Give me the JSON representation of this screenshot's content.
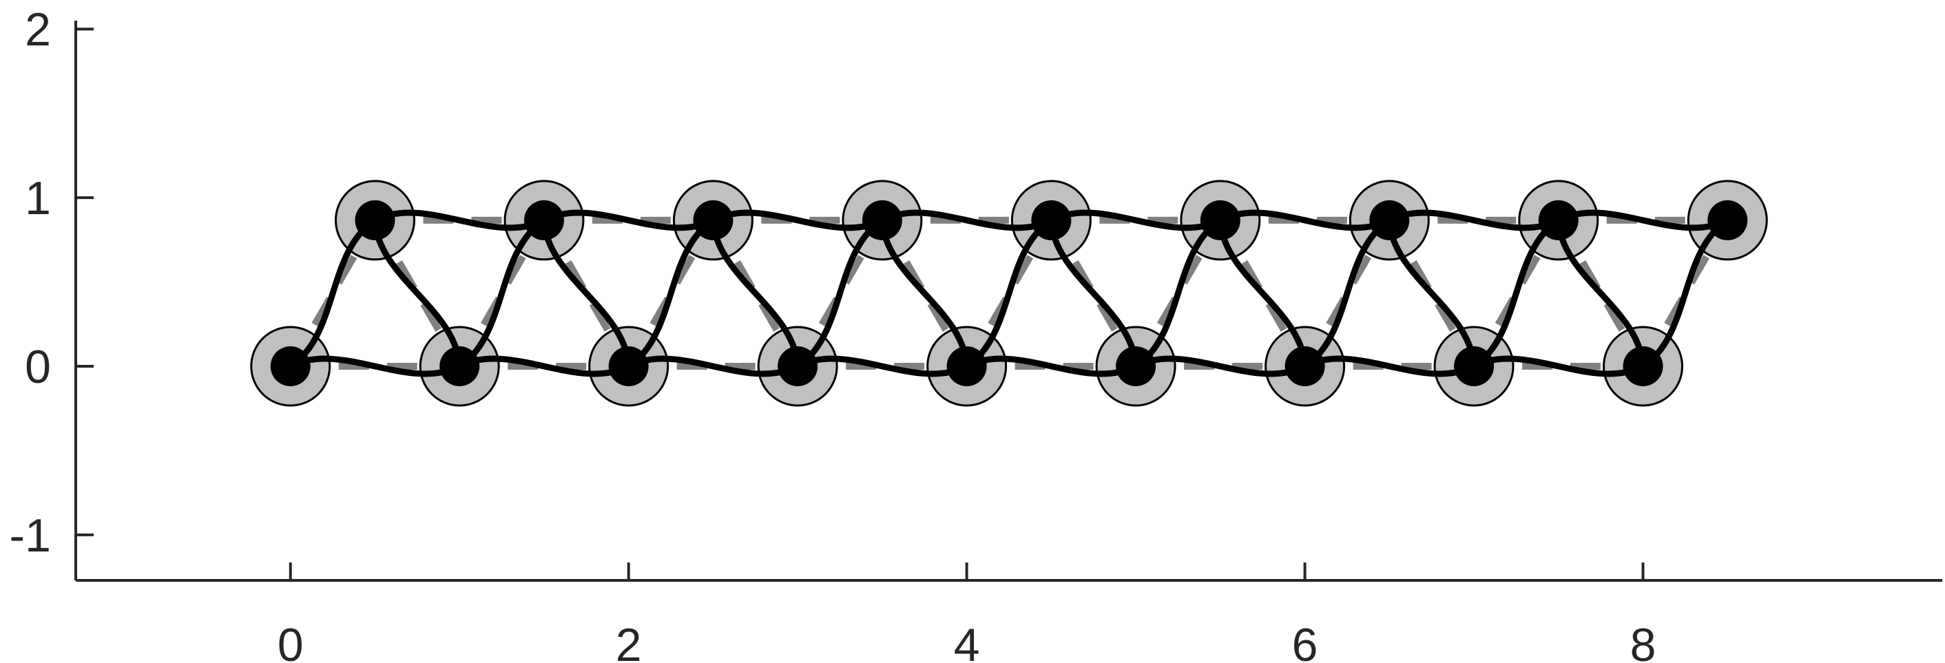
{
  "chart_data": {
    "type": "scatter",
    "title": "",
    "xlabel": "",
    "ylabel": "",
    "xlim": [
      -1.27,
      9.77
    ],
    "ylim": [
      -1.27,
      2.05
    ],
    "grid": false,
    "xticks": [
      0,
      2,
      4,
      6,
      8
    ],
    "xtick_labels": [
      "0",
      "2",
      "4",
      "6",
      "8"
    ],
    "yticks": [
      -1,
      0,
      1,
      2
    ],
    "ytick_labels": [
      "-1",
      "0",
      "1",
      "2"
    ],
    "nodes": [
      {
        "x": 0,
        "y": 0
      },
      {
        "x": 0.5,
        "y": 0.866
      },
      {
        "x": 1,
        "y": 0
      },
      {
        "x": 1.5,
        "y": 0.866
      },
      {
        "x": 2,
        "y": 0
      },
      {
        "x": 2.5,
        "y": 0.866
      },
      {
        "x": 3,
        "y": 0
      },
      {
        "x": 3.5,
        "y": 0.866
      },
      {
        "x": 4,
        "y": 0
      },
      {
        "x": 4.5,
        "y": 0.866
      },
      {
        "x": 5,
        "y": 0
      },
      {
        "x": 5.5,
        "y": 0.866
      },
      {
        "x": 6,
        "y": 0
      },
      {
        "x": 6.5,
        "y": 0.866
      },
      {
        "x": 7,
        "y": 0
      },
      {
        "x": 7.5,
        "y": 0.866
      },
      {
        "x": 8,
        "y": 0
      },
      {
        "x": 8.5,
        "y": 0.866
      }
    ],
    "lattice_edges": [
      [
        0,
        1
      ],
      [
        1,
        2
      ],
      [
        2,
        3
      ],
      [
        3,
        4
      ],
      [
        4,
        5
      ],
      [
        5,
        6
      ],
      [
        6,
        7
      ],
      [
        7,
        8
      ],
      [
        8,
        9
      ],
      [
        9,
        10
      ],
      [
        10,
        11
      ],
      [
        11,
        12
      ],
      [
        12,
        13
      ],
      [
        13,
        14
      ],
      [
        14,
        15
      ],
      [
        15,
        16
      ],
      [
        16,
        17
      ],
      [
        0,
        2
      ],
      [
        2,
        4
      ],
      [
        4,
        6
      ],
      [
        6,
        8
      ],
      [
        8,
        10
      ],
      [
        10,
        12
      ],
      [
        12,
        14
      ],
      [
        14,
        16
      ],
      [
        1,
        3
      ],
      [
        3,
        5
      ],
      [
        5,
        7
      ],
      [
        7,
        9
      ],
      [
        9,
        11
      ],
      [
        11,
        13
      ],
      [
        13,
        15
      ],
      [
        15,
        17
      ]
    ],
    "curved_edges": [
      [
        0,
        1
      ],
      [
        0,
        2
      ],
      [
        1,
        2
      ],
      [
        1,
        3
      ],
      [
        2,
        3
      ],
      [
        2,
        4
      ],
      [
        3,
        4
      ],
      [
        3,
        5
      ],
      [
        4,
        5
      ],
      [
        4,
        6
      ],
      [
        5,
        6
      ],
      [
        5,
        7
      ],
      [
        6,
        7
      ],
      [
        6,
        8
      ],
      [
        7,
        8
      ],
      [
        7,
        9
      ],
      [
        8,
        9
      ],
      [
        8,
        10
      ],
      [
        9,
        10
      ],
      [
        9,
        11
      ],
      [
        10,
        11
      ],
      [
        10,
        12
      ],
      [
        11,
        12
      ],
      [
        11,
        13
      ],
      [
        12,
        13
      ],
      [
        12,
        14
      ],
      [
        13,
        14
      ],
      [
        13,
        15
      ],
      [
        14,
        15
      ],
      [
        14,
        16
      ],
      [
        15,
        16
      ],
      [
        15,
        17
      ],
      [
        16,
        17
      ]
    ],
    "colors": {
      "node_fill": "#c0c0c0",
      "node_core": "#000000",
      "lattice": "#808080",
      "curve": "#000000",
      "axis": "#262626"
    }
  }
}
